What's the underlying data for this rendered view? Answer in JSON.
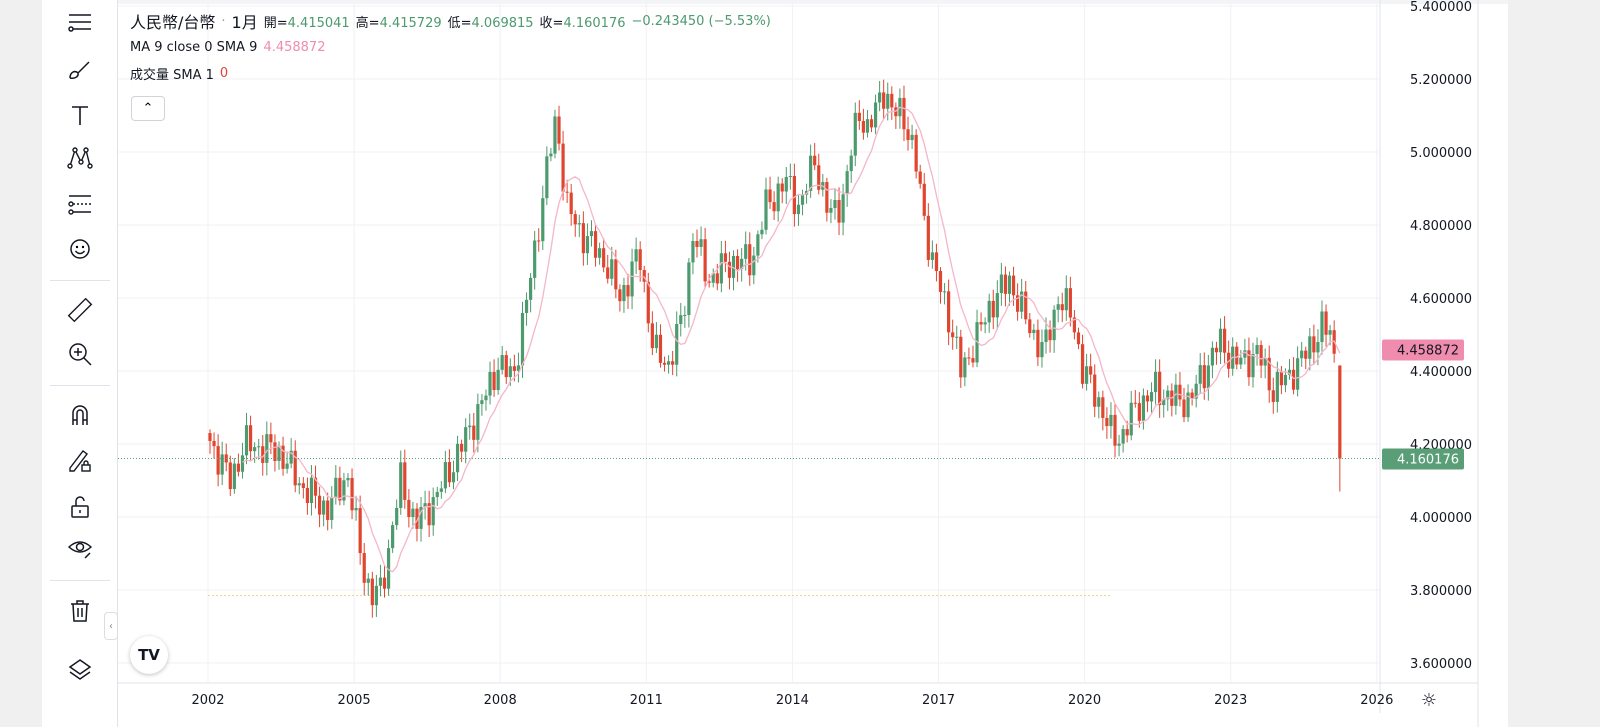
{
  "legend": {
    "symbol": "人民幣/台幣",
    "sep": "·",
    "interval": "1月",
    "open_label": "開=",
    "open": "4.415041",
    "high_label": "高=",
    "high": "4.415729",
    "low_label": "低=",
    "low": "4.069815",
    "close_label": "收=",
    "close": "4.160176",
    "change": "−0.243450 (−5.53%)",
    "ma_label": "MA 9 close 0 SMA 9",
    "ma_value": "4.458872",
    "vol_label": "成交量 SMA 1",
    "vol_value": "0"
  },
  "toolbar": [
    "crosshair-menu",
    "brush",
    "text",
    "pattern",
    "prediction",
    "emoji",
    "ruler",
    "zoom-in",
    "magnet",
    "lock-drawing",
    "unlock",
    "eye",
    "trash",
    "layers"
  ],
  "logo": "TV",
  "colors": {
    "up": "#4c9a6e",
    "down": "#e0452f",
    "ma": "#f4b6c8",
    "ma_badge": "#f08cae",
    "last_badge": "#5a9e77"
  },
  "chart_data": {
    "type": "candlestick",
    "title": "人民幣/台幣 · 1月",
    "interval": "monthly",
    "y_ticks": [
      "5.400000",
      "5.200000",
      "5.000000",
      "4.800000",
      "4.600000",
      "4.400000",
      "4.200000",
      "4.000000",
      "3.800000",
      "3.600000"
    ],
    "ylim": [
      3.6,
      5.4
    ],
    "x_ticks": [
      "2002",
      "2005",
      "2008",
      "2011",
      "2014",
      "2017",
      "2020",
      "2023",
      "2026"
    ],
    "xlim": [
      2002,
      2026
    ],
    "close_keypoints": [
      [
        2002.0,
        4.23
      ],
      [
        2002.5,
        4.1
      ],
      [
        2002.8,
        4.2
      ],
      [
        2003.5,
        4.18
      ],
      [
        2004.0,
        4.08
      ],
      [
        2004.5,
        4.02
      ],
      [
        2004.9,
        4.12
      ],
      [
        2005.2,
        3.88
      ],
      [
        2005.4,
        3.78
      ],
      [
        2005.6,
        3.8
      ],
      [
        2006.0,
        4.1
      ],
      [
        2006.3,
        3.98
      ],
      [
        2006.7,
        4.05
      ],
      [
        2007.2,
        4.18
      ],
      [
        2007.8,
        4.35
      ],
      [
        2008.0,
        4.42
      ],
      [
        2008.3,
        4.38
      ],
      [
        2008.6,
        4.6
      ],
      [
        2009.0,
        4.95
      ],
      [
        2009.2,
        5.1
      ],
      [
        2009.4,
        4.85
      ],
      [
        2009.7,
        4.78
      ],
      [
        2010.2,
        4.7
      ],
      [
        2010.5,
        4.6
      ],
      [
        2010.9,
        4.72
      ],
      [
        2011.2,
        4.45
      ],
      [
        2011.5,
        4.42
      ],
      [
        2011.8,
        4.55
      ],
      [
        2012.0,
        4.78
      ],
      [
        2012.3,
        4.65
      ],
      [
        2012.8,
        4.7
      ],
      [
        2013.2,
        4.7
      ],
      [
        2013.5,
        4.85
      ],
      [
        2013.9,
        4.92
      ],
      [
        2014.2,
        4.85
      ],
      [
        2014.5,
        4.98
      ],
      [
        2014.8,
        4.82
      ],
      [
        2015.1,
        4.88
      ],
      [
        2015.4,
        5.12
      ],
      [
        2015.6,
        5.05
      ],
      [
        2015.9,
        5.18
      ],
      [
        2016.1,
        5.1
      ],
      [
        2016.3,
        5.12
      ],
      [
        2016.6,
        4.95
      ],
      [
        2016.9,
        4.7
      ],
      [
        2017.2,
        4.58
      ],
      [
        2017.5,
        4.4
      ],
      [
        2017.8,
        4.48
      ],
      [
        2018.1,
        4.58
      ],
      [
        2018.5,
        4.65
      ],
      [
        2018.8,
        4.55
      ],
      [
        2019.2,
        4.45
      ],
      [
        2019.5,
        4.6
      ],
      [
        2019.8,
        4.55
      ],
      [
        2020.0,
        4.4
      ],
      [
        2020.3,
        4.33
      ],
      [
        2020.6,
        4.22
      ],
      [
        2020.8,
        4.22
      ],
      [
        2021.1,
        4.3
      ],
      [
        2021.5,
        4.35
      ],
      [
        2021.9,
        4.32
      ],
      [
        2022.2,
        4.32
      ],
      [
        2022.5,
        4.4
      ],
      [
        2022.8,
        4.48
      ],
      [
        2023.2,
        4.42
      ],
      [
        2023.6,
        4.45
      ],
      [
        2023.9,
        4.35
      ],
      [
        2024.2,
        4.38
      ],
      [
        2024.6,
        4.45
      ],
      [
        2024.9,
        4.52
      ],
      [
        2025.1,
        4.5
      ],
      [
        2025.2,
        4.415
      ]
    ],
    "last_candle": {
      "open": 4.415041,
      "high": 4.415729,
      "low": 4.069815,
      "close": 4.160176
    },
    "ma": {
      "name": "MA 9 close 0 SMA 9",
      "period": 9,
      "last": 4.458872
    },
    "last_price": 4.160176,
    "last_price_label": "4.160176",
    "ma_label": "4.458872",
    "support_line": 3.785
  }
}
